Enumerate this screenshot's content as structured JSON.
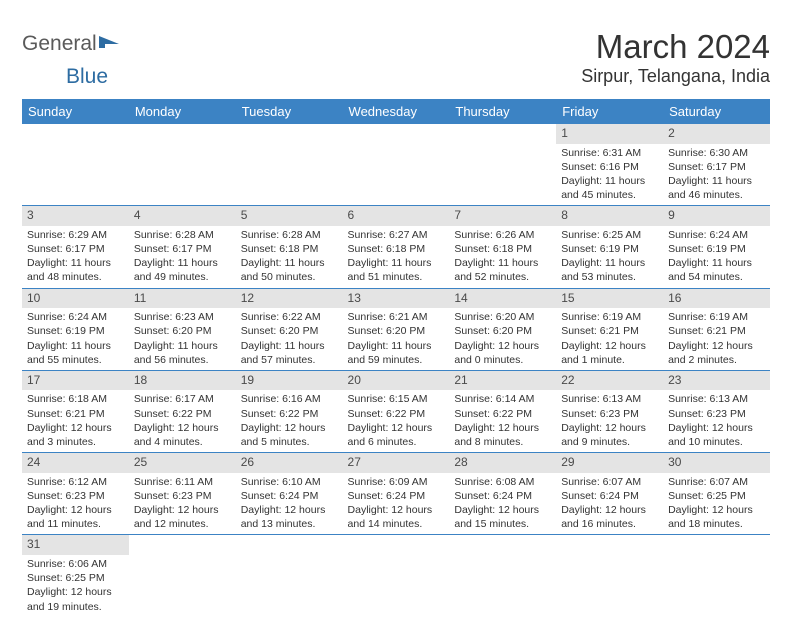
{
  "logo": {
    "part1": "General",
    "part2": "Blue"
  },
  "title": "March 2024",
  "location": "Sirpur, Telangana, India",
  "colors": {
    "header_bg": "#3c83c4",
    "header_text": "#ffffff",
    "daynum_bg": "#e4e4e4",
    "border": "#3c83c4",
    "text": "#333333",
    "logo_gray": "#5a5a5a",
    "logo_blue": "#2d6ca2"
  },
  "weekdays": [
    "Sunday",
    "Monday",
    "Tuesday",
    "Wednesday",
    "Thursday",
    "Friday",
    "Saturday"
  ],
  "weeks": [
    [
      {
        "blank": true
      },
      {
        "blank": true
      },
      {
        "blank": true
      },
      {
        "blank": true
      },
      {
        "blank": true
      },
      {
        "day": "1",
        "sunrise": "Sunrise: 6:31 AM",
        "sunset": "Sunset: 6:16 PM",
        "daylight1": "Daylight: 11 hours",
        "daylight2": "and 45 minutes."
      },
      {
        "day": "2",
        "sunrise": "Sunrise: 6:30 AM",
        "sunset": "Sunset: 6:17 PM",
        "daylight1": "Daylight: 11 hours",
        "daylight2": "and 46 minutes."
      }
    ],
    [
      {
        "day": "3",
        "sunrise": "Sunrise: 6:29 AM",
        "sunset": "Sunset: 6:17 PM",
        "daylight1": "Daylight: 11 hours",
        "daylight2": "and 48 minutes."
      },
      {
        "day": "4",
        "sunrise": "Sunrise: 6:28 AM",
        "sunset": "Sunset: 6:17 PM",
        "daylight1": "Daylight: 11 hours",
        "daylight2": "and 49 minutes."
      },
      {
        "day": "5",
        "sunrise": "Sunrise: 6:28 AM",
        "sunset": "Sunset: 6:18 PM",
        "daylight1": "Daylight: 11 hours",
        "daylight2": "and 50 minutes."
      },
      {
        "day": "6",
        "sunrise": "Sunrise: 6:27 AM",
        "sunset": "Sunset: 6:18 PM",
        "daylight1": "Daylight: 11 hours",
        "daylight2": "and 51 minutes."
      },
      {
        "day": "7",
        "sunrise": "Sunrise: 6:26 AM",
        "sunset": "Sunset: 6:18 PM",
        "daylight1": "Daylight: 11 hours",
        "daylight2": "and 52 minutes."
      },
      {
        "day": "8",
        "sunrise": "Sunrise: 6:25 AM",
        "sunset": "Sunset: 6:19 PM",
        "daylight1": "Daylight: 11 hours",
        "daylight2": "and 53 minutes."
      },
      {
        "day": "9",
        "sunrise": "Sunrise: 6:24 AM",
        "sunset": "Sunset: 6:19 PM",
        "daylight1": "Daylight: 11 hours",
        "daylight2": "and 54 minutes."
      }
    ],
    [
      {
        "day": "10",
        "sunrise": "Sunrise: 6:24 AM",
        "sunset": "Sunset: 6:19 PM",
        "daylight1": "Daylight: 11 hours",
        "daylight2": "and 55 minutes."
      },
      {
        "day": "11",
        "sunrise": "Sunrise: 6:23 AM",
        "sunset": "Sunset: 6:20 PM",
        "daylight1": "Daylight: 11 hours",
        "daylight2": "and 56 minutes."
      },
      {
        "day": "12",
        "sunrise": "Sunrise: 6:22 AM",
        "sunset": "Sunset: 6:20 PM",
        "daylight1": "Daylight: 11 hours",
        "daylight2": "and 57 minutes."
      },
      {
        "day": "13",
        "sunrise": "Sunrise: 6:21 AM",
        "sunset": "Sunset: 6:20 PM",
        "daylight1": "Daylight: 11 hours",
        "daylight2": "and 59 minutes."
      },
      {
        "day": "14",
        "sunrise": "Sunrise: 6:20 AM",
        "sunset": "Sunset: 6:20 PM",
        "daylight1": "Daylight: 12 hours",
        "daylight2": "and 0 minutes."
      },
      {
        "day": "15",
        "sunrise": "Sunrise: 6:19 AM",
        "sunset": "Sunset: 6:21 PM",
        "daylight1": "Daylight: 12 hours",
        "daylight2": "and 1 minute."
      },
      {
        "day": "16",
        "sunrise": "Sunrise: 6:19 AM",
        "sunset": "Sunset: 6:21 PM",
        "daylight1": "Daylight: 12 hours",
        "daylight2": "and 2 minutes."
      }
    ],
    [
      {
        "day": "17",
        "sunrise": "Sunrise: 6:18 AM",
        "sunset": "Sunset: 6:21 PM",
        "daylight1": "Daylight: 12 hours",
        "daylight2": "and 3 minutes."
      },
      {
        "day": "18",
        "sunrise": "Sunrise: 6:17 AM",
        "sunset": "Sunset: 6:22 PM",
        "daylight1": "Daylight: 12 hours",
        "daylight2": "and 4 minutes."
      },
      {
        "day": "19",
        "sunrise": "Sunrise: 6:16 AM",
        "sunset": "Sunset: 6:22 PM",
        "daylight1": "Daylight: 12 hours",
        "daylight2": "and 5 minutes."
      },
      {
        "day": "20",
        "sunrise": "Sunrise: 6:15 AM",
        "sunset": "Sunset: 6:22 PM",
        "daylight1": "Daylight: 12 hours",
        "daylight2": "and 6 minutes."
      },
      {
        "day": "21",
        "sunrise": "Sunrise: 6:14 AM",
        "sunset": "Sunset: 6:22 PM",
        "daylight1": "Daylight: 12 hours",
        "daylight2": "and 8 minutes."
      },
      {
        "day": "22",
        "sunrise": "Sunrise: 6:13 AM",
        "sunset": "Sunset: 6:23 PM",
        "daylight1": "Daylight: 12 hours",
        "daylight2": "and 9 minutes."
      },
      {
        "day": "23",
        "sunrise": "Sunrise: 6:13 AM",
        "sunset": "Sunset: 6:23 PM",
        "daylight1": "Daylight: 12 hours",
        "daylight2": "and 10 minutes."
      }
    ],
    [
      {
        "day": "24",
        "sunrise": "Sunrise: 6:12 AM",
        "sunset": "Sunset: 6:23 PM",
        "daylight1": "Daylight: 12 hours",
        "daylight2": "and 11 minutes."
      },
      {
        "day": "25",
        "sunrise": "Sunrise: 6:11 AM",
        "sunset": "Sunset: 6:23 PM",
        "daylight1": "Daylight: 12 hours",
        "daylight2": "and 12 minutes."
      },
      {
        "day": "26",
        "sunrise": "Sunrise: 6:10 AM",
        "sunset": "Sunset: 6:24 PM",
        "daylight1": "Daylight: 12 hours",
        "daylight2": "and 13 minutes."
      },
      {
        "day": "27",
        "sunrise": "Sunrise: 6:09 AM",
        "sunset": "Sunset: 6:24 PM",
        "daylight1": "Daylight: 12 hours",
        "daylight2": "and 14 minutes."
      },
      {
        "day": "28",
        "sunrise": "Sunrise: 6:08 AM",
        "sunset": "Sunset: 6:24 PM",
        "daylight1": "Daylight: 12 hours",
        "daylight2": "and 15 minutes."
      },
      {
        "day": "29",
        "sunrise": "Sunrise: 6:07 AM",
        "sunset": "Sunset: 6:24 PM",
        "daylight1": "Daylight: 12 hours",
        "daylight2": "and 16 minutes."
      },
      {
        "day": "30",
        "sunrise": "Sunrise: 6:07 AM",
        "sunset": "Sunset: 6:25 PM",
        "daylight1": "Daylight: 12 hours",
        "daylight2": "and 18 minutes."
      }
    ],
    [
      {
        "day": "31",
        "sunrise": "Sunrise: 6:06 AM",
        "sunset": "Sunset: 6:25 PM",
        "daylight1": "Daylight: 12 hours",
        "daylight2": "and 19 minutes."
      },
      {
        "blank": true
      },
      {
        "blank": true
      },
      {
        "blank": true
      },
      {
        "blank": true
      },
      {
        "blank": true
      },
      {
        "blank": true
      }
    ]
  ]
}
